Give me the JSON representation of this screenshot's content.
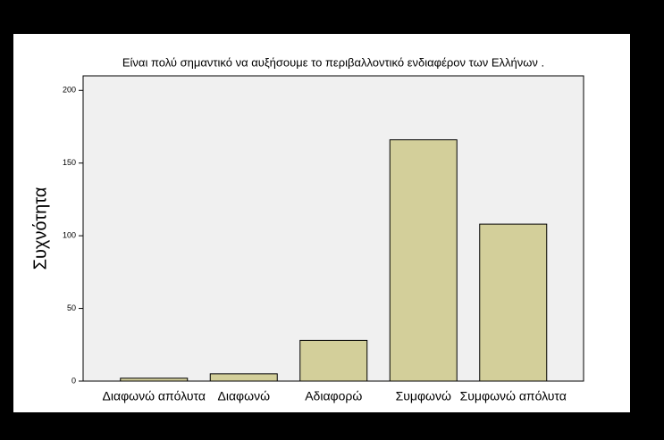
{
  "chart_data": {
    "type": "bar",
    "title": "Είναι πολύ σημαντικό να αυξήσουμε το περιβαλλοντικό ενδιαφέρον των Ελλήνων .",
    "y_label": "Συχνότητα",
    "categories": [
      "Διαφωνώ απόλυτα",
      "Διαφωνώ",
      "Αδιαφορώ",
      "Συμφωνώ",
      "Συμφωνώ απόλυτα"
    ],
    "values": [
      2,
      5,
      28,
      166,
      108
    ],
    "color": "#d3cf9a",
    "ylim": [
      0,
      210
    ],
    "yticks": [
      0,
      50,
      100,
      150,
      200
    ]
  }
}
